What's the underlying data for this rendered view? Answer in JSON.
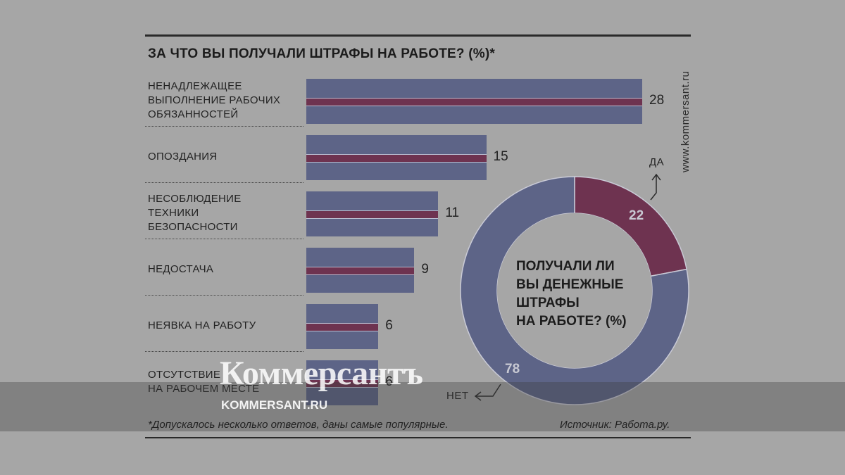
{
  "title": "ЗА ЧТО ВЫ ПОЛУЧАЛИ ШТРАФЫ НА РАБОТЕ? (%)*",
  "site": "www.kommersant.ru",
  "footnote": "*Допускалось несколько ответов, даны самые популярные.",
  "source": "Источник: Работа.ру.",
  "watermark": {
    "logo": "Коммерсантъ",
    "url": "KOMMERSANT.RU"
  },
  "chart_data": [
    {
      "type": "bar",
      "orientation": "horizontal",
      "title": "ЗА ЧТО ВЫ ПОЛУЧАЛИ ШТРАФЫ НА РАБОТЕ? (%)*",
      "categories": [
        [
          "НЕНАДЛЕЖАЩЕЕ",
          "ВЫПОЛНЕНИЕ РАБОЧИХ",
          "ОБЯЗАННОСТЕЙ"
        ],
        [
          "ОПОЗДАНИЯ"
        ],
        [
          "НЕСОБЛЮДЕНИЕ",
          "ТЕХНИКИ",
          "БЕЗОПАСНОСТИ"
        ],
        [
          "НЕДОСТАЧА"
        ],
        [
          "НЕЯВКА НА РАБОТУ"
        ],
        [
          "ОТСУТСТВИЕ",
          "НА РАБОЧЕМ МЕСТЕ"
        ]
      ],
      "values": [
        28,
        15,
        11,
        9,
        6,
        6
      ],
      "value_labels": [
        "28",
        "15",
        "11",
        "9",
        "6",
        "6"
      ],
      "xlim": [
        0,
        28
      ],
      "colors": {
        "bar": "#5d6487",
        "stripe": "#6e3350"
      }
    },
    {
      "type": "pie",
      "donut": true,
      "title": [
        "ПОЛУЧАЛИ ЛИ",
        "ВЫ ДЕНЕЖНЫЕ",
        "ШТРАФЫ",
        "НА РАБОТЕ? (%)"
      ],
      "slices": [
        {
          "label": "ДА",
          "value": 22,
          "value_label": "22",
          "color": "#6e3350"
        },
        {
          "label": "НЕТ",
          "value": 78,
          "value_label": "78",
          "color": "#5d6487"
        }
      ]
    }
  ]
}
